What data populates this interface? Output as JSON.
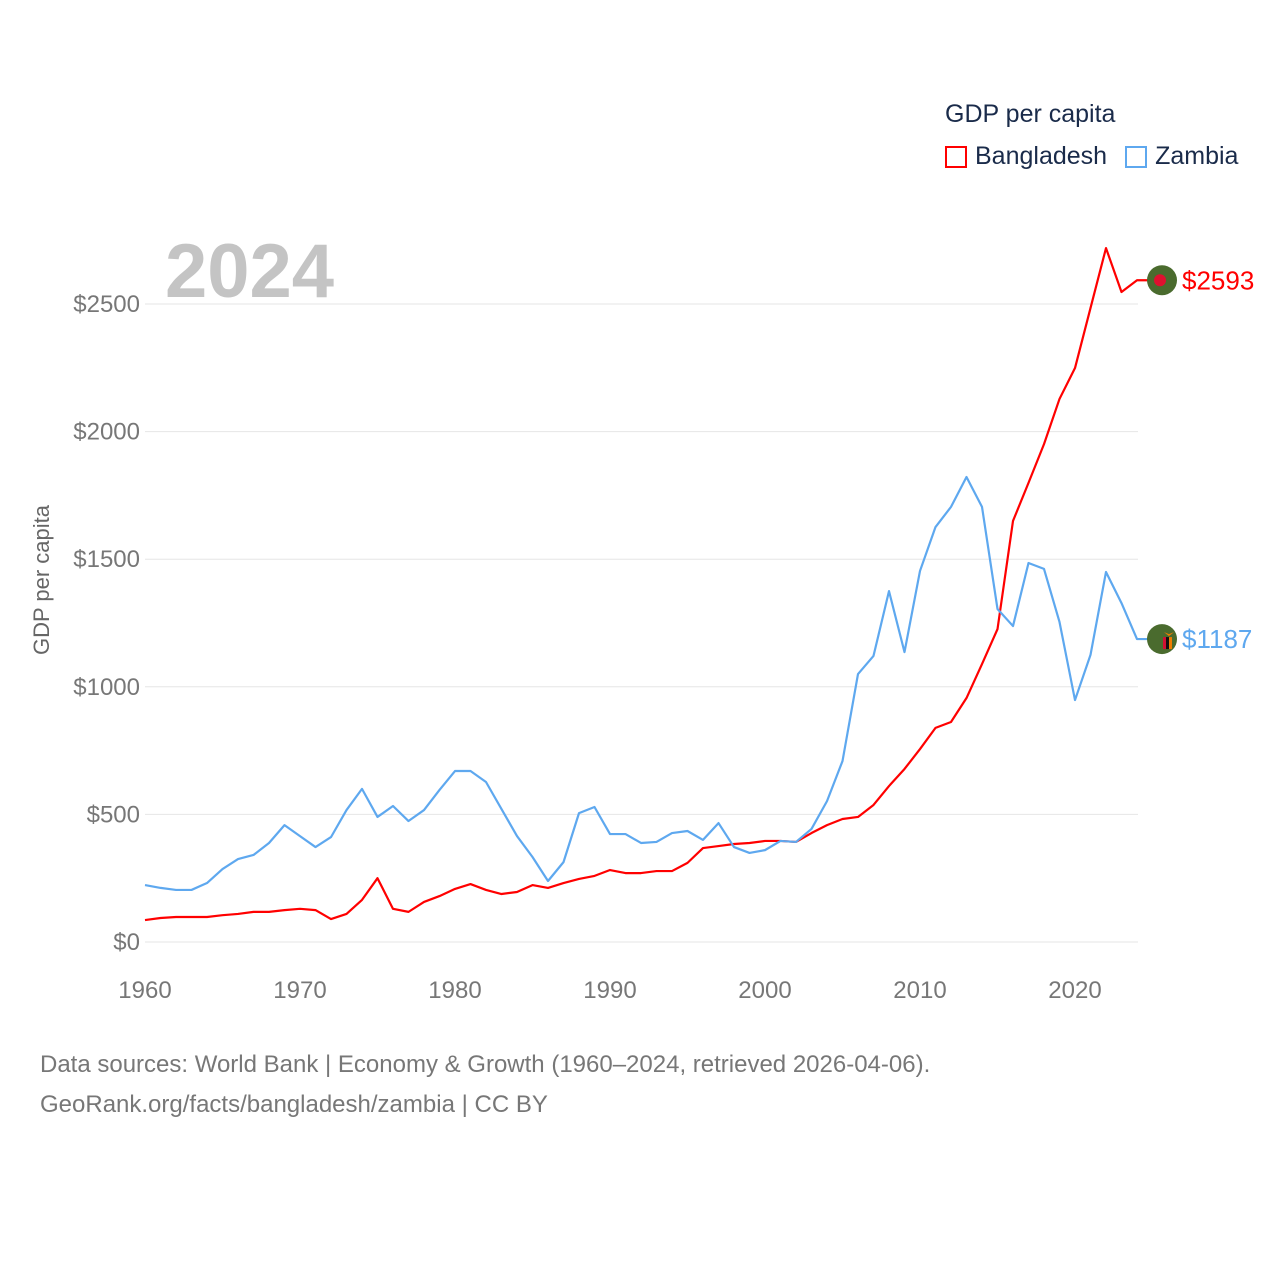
{
  "chart_data": {
    "type": "line",
    "title": "GDP per capita",
    "year_label": "2024",
    "xlabel": "",
    "ylabel": "GDP per capita",
    "xlim": [
      1960,
      2024
    ],
    "ylim": [
      0,
      2750
    ],
    "x_ticks": [
      "1960",
      "1970",
      "1980",
      "1990",
      "2000",
      "2010",
      "2020"
    ],
    "y_ticks": [
      "$0",
      "$500",
      "$1000",
      "$1500",
      "$2000",
      "$2500"
    ],
    "y_tick_values": [
      0,
      500,
      1000,
      1500,
      2000,
      2500
    ],
    "x_tick_values": [
      1960,
      1970,
      1980,
      1990,
      2000,
      2010,
      2020
    ],
    "grid": true,
    "legend_position": "top-right",
    "legend_title": "GDP per capita",
    "x": [
      1960,
      1961,
      1962,
      1963,
      1964,
      1965,
      1966,
      1967,
      1968,
      1969,
      1970,
      1971,
      1972,
      1973,
      1974,
      1975,
      1976,
      1977,
      1978,
      1979,
      1980,
      1981,
      1982,
      1983,
      1984,
      1985,
      1986,
      1987,
      1988,
      1989,
      1990,
      1991,
      1992,
      1993,
      1994,
      1995,
      1996,
      1997,
      1998,
      1999,
      2000,
      2001,
      2002,
      2003,
      2004,
      2005,
      2006,
      2007,
      2008,
      2009,
      2010,
      2011,
      2012,
      2013,
      2014,
      2015,
      2016,
      2017,
      2018,
      2019,
      2020,
      2021,
      2022,
      2023,
      2024
    ],
    "series": [
      {
        "name": "Bangladesh",
        "color": "#ff0000",
        "end_label": "$2593",
        "values": [
          86,
          94,
          98,
          98,
          98,
          105,
          110,
          118,
          118,
          125,
          130,
          125,
          90,
          110,
          165,
          250,
          130,
          118,
          157,
          180,
          208,
          227,
          204,
          188,
          196,
          223,
          212,
          231,
          247,
          259,
          282,
          270,
          270,
          278,
          278,
          310,
          368,
          376,
          384,
          388,
          396,
          396,
          392,
          427,
          458,
          482,
          490,
          537,
          611,
          678,
          756,
          839,
          862,
          956,
          1089,
          1226,
          1650,
          1799,
          1951,
          2128,
          2249,
          2484,
          2719,
          2547,
          2593
        ]
      },
      {
        "name": "Zambia",
        "color": "#5ea8ef",
        "end_label": "$1187",
        "values": [
          223,
          212,
          204,
          204,
          231,
          286,
          325,
          341,
          388,
          458,
          415,
          372,
          411,
          517,
          600,
          490,
          533,
          474,
          517,
          596,
          670,
          670,
          627,
          521,
          415,
          333,
          239,
          313,
          505,
          529,
          423,
          423,
          388,
          392,
          427,
          435,
          400,
          466,
          372,
          349,
          360,
          396,
          392,
          443,
          552,
          709,
          1050,
          1121,
          1375,
          1136,
          1454,
          1626,
          1705,
          1822,
          1705,
          1305,
          1238,
          1485,
          1462,
          1254,
          948,
          1125,
          1450,
          1328,
          1187
        ]
      }
    ]
  },
  "footer": {
    "line1": "Data sources: World Bank | Economy & Growth (1960–2024, retrieved 2026-04-06).",
    "line2": "GeoRank.org/facts/bangladesh/zambia | CC BY"
  }
}
